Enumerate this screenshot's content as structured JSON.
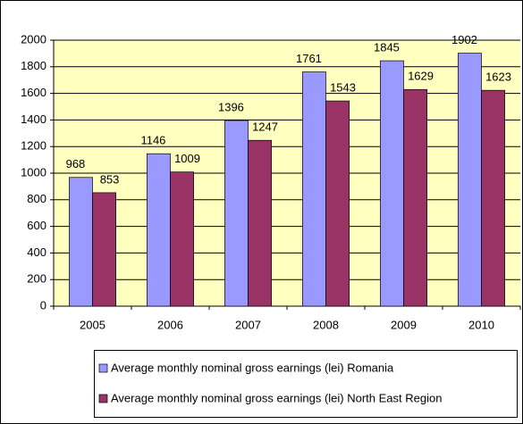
{
  "chart_data": {
    "type": "bar",
    "categories": [
      "2005",
      "2006",
      "2007",
      "2008",
      "2009",
      "2010"
    ],
    "series": [
      {
        "name": "Average monthly nominal gross earnings (lei) Romania",
        "color": "#9999ff",
        "values": [
          968,
          1146,
          1396,
          1761,
          1845,
          1902
        ]
      },
      {
        "name": "Average monthly nominal gross earnings (lei) North East Region",
        "color": "#993366",
        "values": [
          853,
          1009,
          1247,
          1543,
          1629,
          1623
        ]
      }
    ],
    "ylim": [
      0,
      2000
    ],
    "yticks": [
      0,
      200,
      400,
      600,
      800,
      1000,
      1200,
      1400,
      1600,
      1800,
      2000
    ],
    "grid": true,
    "legend": "bottom"
  }
}
